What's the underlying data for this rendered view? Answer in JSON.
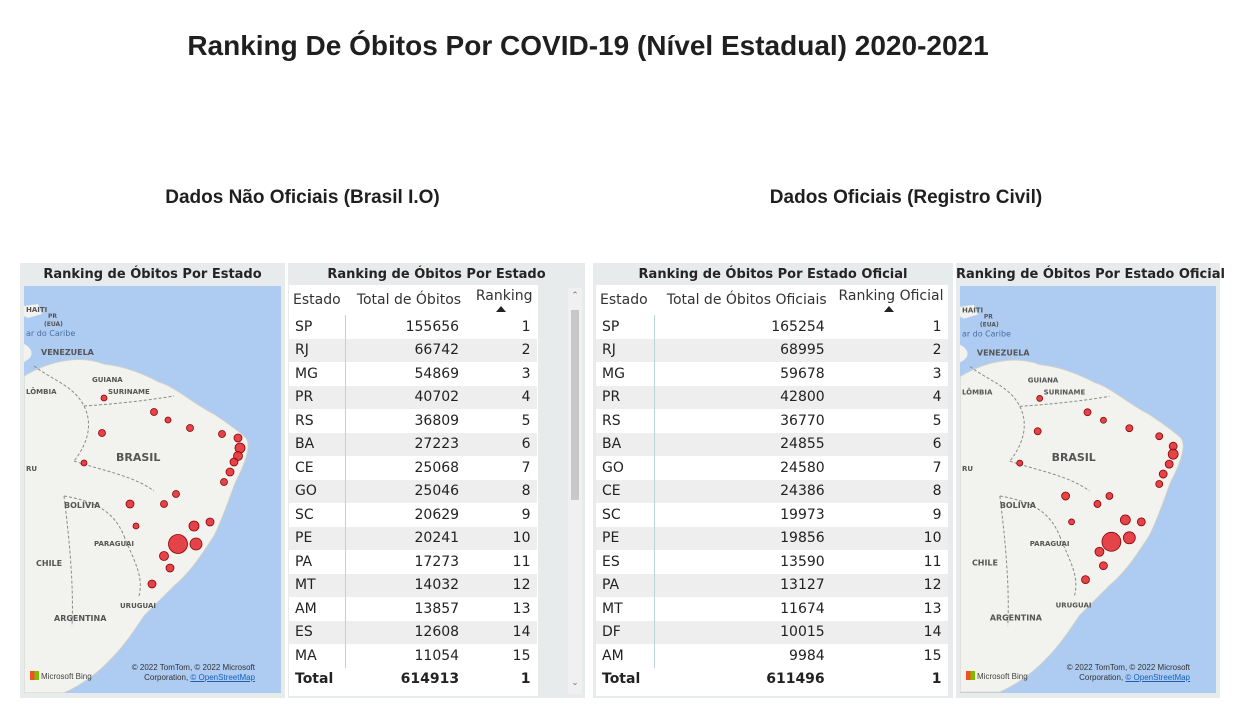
{
  "title": "Ranking De Óbitos Por COVID-19 (Nível Estadual) 2020-2021",
  "left": {
    "section_title": "Dados Não Oficiais (Brasil I.O)",
    "map_title": "Ranking de Óbitos Por Estado",
    "table_title": "Ranking de Óbitos Por Estado",
    "columns": [
      "Estado",
      "Total de Óbitos",
      "Ranking"
    ],
    "rows": [
      [
        "SP",
        "155656",
        "1"
      ],
      [
        "RJ",
        "66742",
        "2"
      ],
      [
        "MG",
        "54869",
        "3"
      ],
      [
        "PR",
        "40702",
        "4"
      ],
      [
        "RS",
        "36809",
        "5"
      ],
      [
        "BA",
        "27223",
        "6"
      ],
      [
        "CE",
        "25068",
        "7"
      ],
      [
        "GO",
        "25046",
        "8"
      ],
      [
        "SC",
        "20629",
        "9"
      ],
      [
        "PE",
        "20241",
        "10"
      ],
      [
        "PA",
        "17273",
        "11"
      ],
      [
        "MT",
        "14032",
        "12"
      ],
      [
        "AM",
        "13857",
        "13"
      ],
      [
        "ES",
        "12608",
        "14"
      ],
      [
        "MA",
        "11054",
        "15"
      ]
    ],
    "total": [
      "Total",
      "614913",
      "1"
    ]
  },
  "right": {
    "section_title": "Dados Oficiais (Registro Civil)",
    "map_title": "Ranking de Óbitos Por Estado Oficial",
    "table_title": "Ranking de Óbitos Por Estado Oficial",
    "columns": [
      "Estado",
      "Total de Óbitos Oficiais",
      "Ranking Oficial"
    ],
    "rows": [
      [
        "SP",
        "165254",
        "1"
      ],
      [
        "RJ",
        "68995",
        "2"
      ],
      [
        "MG",
        "59678",
        "3"
      ],
      [
        "PR",
        "42800",
        "4"
      ],
      [
        "RS",
        "36770",
        "5"
      ],
      [
        "BA",
        "24855",
        "6"
      ],
      [
        "GO",
        "24580",
        "7"
      ],
      [
        "CE",
        "24386",
        "8"
      ],
      [
        "SC",
        "19973",
        "9"
      ],
      [
        "PE",
        "19856",
        "10"
      ],
      [
        "ES",
        "13590",
        "11"
      ],
      [
        "PA",
        "13127",
        "12"
      ],
      [
        "MT",
        "11674",
        "13"
      ],
      [
        "DF",
        "10015",
        "14"
      ],
      [
        "AM",
        "9984",
        "15"
      ]
    ],
    "total": [
      "Total",
      "611496",
      "1"
    ]
  },
  "map_labels": {
    "haiti": "HAITI",
    "pr": "PR",
    "eua": "(EUA)",
    "caribe": "ar do Caribe",
    "venezuela": "VENEZUELA",
    "guiana": "GUIANA",
    "suriname": "SURINAME",
    "colombia": "LÔMBIA",
    "brasil": "BRASIL",
    "peru": "RU",
    "bolivia": "BOLÍVIA",
    "paraguai": "PARAGUAI",
    "chile": "CHILE",
    "uruguai": "URUGUAI",
    "argentina": "ARGENTINA"
  },
  "map_copyright": "© 2022 TomTom, © 2022 Microsoft",
  "map_copyright2": "Corporation,",
  "map_osm": "© OpenStreetMap",
  "map_brand": "Microsoft Bing",
  "colors": {
    "bubble": "#e0242c",
    "water": "#aecbf2",
    "land": "#f2f2ef",
    "panel": "#e8ebeb"
  }
}
